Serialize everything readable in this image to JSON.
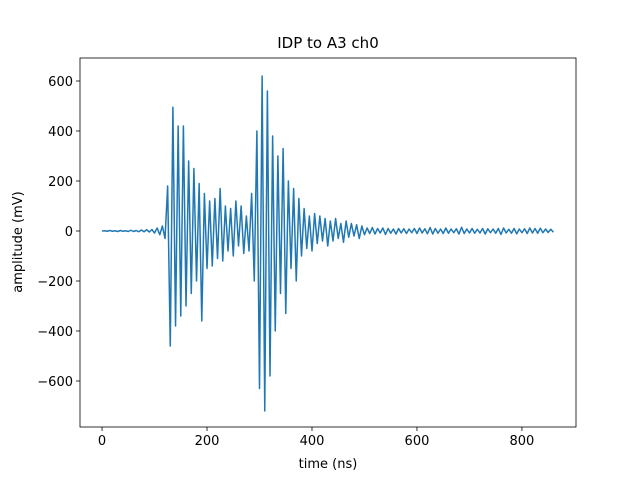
{
  "chart_data": {
    "type": "line",
    "title": "IDP to A3 ch0",
    "xlabel": "time (ns)",
    "ylabel": "amplitude (mV)",
    "color": "#1f77b4",
    "xlim": [
      -42,
      903
    ],
    "ylim": [
      -784,
      692
    ],
    "xticks": [
      0,
      200,
      400,
      600,
      800
    ],
    "yticks": [
      {
        "value": -600,
        "label": "−600"
      },
      {
        "value": -400,
        "label": "−400"
      },
      {
        "value": -200,
        "label": "−200"
      },
      0,
      200,
      400,
      600
    ],
    "x": [
      0,
      5,
      10,
      15,
      20,
      25,
      30,
      35,
      40,
      45,
      50,
      55,
      60,
      65,
      70,
      75,
      80,
      85,
      90,
      95,
      100,
      105,
      110,
      115,
      120,
      125,
      130,
      135,
      140,
      145,
      150,
      155,
      160,
      165,
      170,
      175,
      180,
      185,
      190,
      195,
      200,
      205,
      210,
      215,
      220,
      225,
      230,
      235,
      240,
      245,
      250,
      255,
      260,
      265,
      270,
      275,
      280,
      285,
      290,
      295,
      300,
      305,
      310,
      315,
      320,
      325,
      330,
      335,
      340,
      345,
      350,
      355,
      360,
      365,
      370,
      375,
      380,
      385,
      390,
      395,
      400,
      405,
      410,
      415,
      420,
      425,
      430,
      435,
      440,
      445,
      450,
      455,
      460,
      465,
      470,
      475,
      480,
      485,
      490,
      495,
      500,
      505,
      510,
      515,
      520,
      525,
      530,
      535,
      540,
      545,
      550,
      555,
      560,
      565,
      570,
      575,
      580,
      585,
      590,
      595,
      600,
      605,
      610,
      615,
      620,
      625,
      630,
      635,
      640,
      645,
      650,
      655,
      660,
      665,
      670,
      675,
      680,
      685,
      690,
      695,
      700,
      705,
      710,
      715,
      720,
      725,
      730,
      735,
      740,
      745,
      750,
      755,
      760,
      765,
      770,
      775,
      780,
      785,
      790,
      795,
      800,
      805,
      810,
      815,
      820,
      825,
      830,
      835,
      840,
      845,
      850,
      855,
      860
    ],
    "values": [
      0,
      1,
      -1,
      2,
      -1,
      1,
      -2,
      2,
      -1,
      1,
      -2,
      3,
      -2,
      2,
      -3,
      4,
      -3,
      5,
      -4,
      6,
      -8,
      12,
      -15,
      20,
      -30,
      180,
      -460,
      495,
      -380,
      420,
      -340,
      420,
      -300,
      280,
      -250,
      250,
      -200,
      190,
      -360,
      150,
      -150,
      120,
      -140,
      130,
      -110,
      170,
      -120,
      100,
      -80,
      90,
      -100,
      120,
      -60,
      100,
      -90,
      60,
      -80,
      150,
      -200,
      400,
      -630,
      620,
      -720,
      560,
      -580,
      380,
      -400,
      300,
      -250,
      330,
      -330,
      200,
      -150,
      170,
      -200,
      130,
      -100,
      90,
      -70,
      60,
      -80,
      70,
      -50,
      60,
      -40,
      50,
      -60,
      40,
      -40,
      50,
      -30,
      30,
      -45,
      40,
      -25,
      30,
      -20,
      25,
      -30,
      20,
      -15,
      12,
      -10,
      14,
      -12,
      10,
      -8,
      12,
      -14,
      10,
      -9,
      8,
      -12,
      10,
      -8,
      9,
      -10,
      8,
      -7,
      10,
      -10,
      12,
      -8,
      9,
      -11,
      14,
      -12,
      10,
      -9,
      8,
      -10,
      12,
      -9,
      8,
      -7,
      9,
      -12,
      15,
      -10,
      8,
      -8,
      10,
      -9,
      7,
      -8,
      10,
      -12,
      9,
      -7,
      8,
      -9,
      10,
      -14,
      12,
      -8,
      7,
      -9,
      10,
      -11,
      8,
      -7,
      9,
      -10,
      12,
      -8,
      10,
      -9,
      11,
      -7,
      8,
      -6,
      7,
      -5
    ]
  }
}
